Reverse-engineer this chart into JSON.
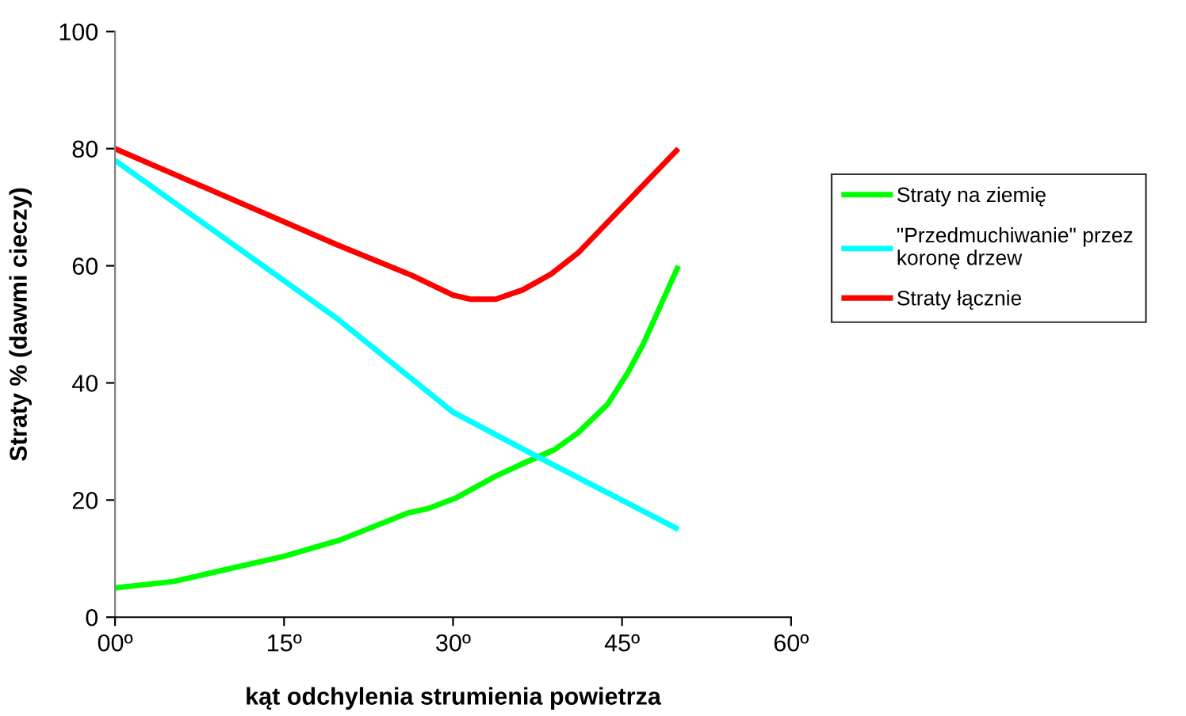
{
  "chart_data": {
    "type": "line",
    "xlabel": "kąt odchylenia strumienia powietrza",
    "ylabel": "Straty % (dawmi cieczy)",
    "xlim": [
      0,
      60
    ],
    "ylim": [
      0,
      100
    ],
    "xticks": [
      {
        "value": 0,
        "label": "00º"
      },
      {
        "value": 15,
        "label": "15º"
      },
      {
        "value": 30,
        "label": "30º"
      },
      {
        "value": 45,
        "label": "45º"
      },
      {
        "value": 60,
        "label": "60º"
      }
    ],
    "yticks": [
      0,
      20,
      40,
      60,
      80,
      100
    ],
    "grid": false,
    "legend": "right",
    "marker": "none",
    "line_style": "solid",
    "series": [
      {
        "name": "Straty na ziemię",
        "color": "#00ff00",
        "x": [
          0,
          5.2,
          15,
          20,
          26,
          27.7,
          30.3,
          33.8,
          36.4,
          39,
          41.1,
          43.7,
          45.5,
          46.9,
          50
        ],
        "values": [
          5,
          6.1,
          10.4,
          13.2,
          17.8,
          18.5,
          20.4,
          24.1,
          26.4,
          28.6,
          31.5,
          36.3,
          41.7,
          46.7,
          60
        ]
      },
      {
        "name": "\"Przedmuchiwanie\" przez koronę drzew",
        "color": "#00ffff",
        "x": [
          0,
          19.7,
          30,
          37.6,
          50
        ],
        "values": [
          78,
          51,
          35,
          27.3,
          15
        ]
      },
      {
        "name": "Straty łącznie",
        "color": "#ff0000",
        "x": [
          0,
          19.7,
          26.3,
          30,
          31.5,
          33.8,
          36.2,
          38.7,
          41.1,
          43.7,
          50
        ],
        "values": [
          80,
          63.6,
          58.4,
          55,
          54.3,
          54.3,
          55.9,
          58.6,
          62.2,
          67.4,
          80
        ]
      }
    ]
  }
}
